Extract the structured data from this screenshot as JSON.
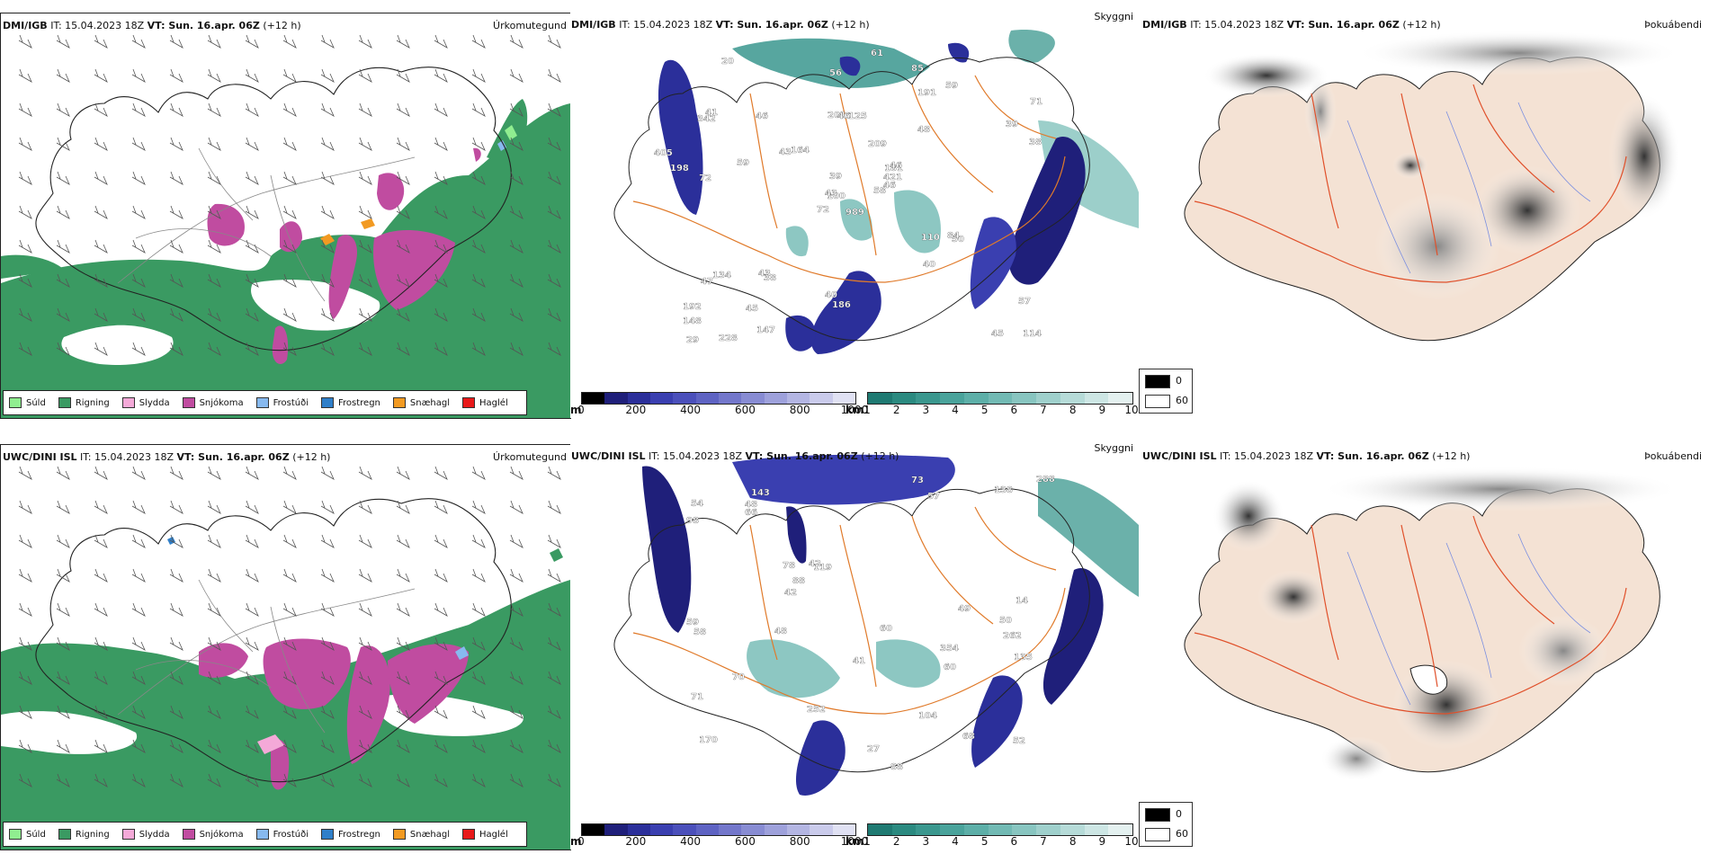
{
  "rows": [
    {
      "model_label": "DMI/IGB",
      "it_label": "IT: 15.04.2023 18Z",
      "vt_label": "VT: Sun. 16.apr. 06Z",
      "lead_label": "(+12 h)",
      "precip_numbers": [
        "989",
        "342",
        "100",
        "192",
        "181",
        "38",
        "85",
        "125",
        "191",
        "58",
        "20",
        "114",
        "72",
        "71",
        "72",
        "48",
        "228",
        "201",
        "209",
        "134",
        "164",
        "148",
        "45",
        "46",
        "46",
        "50",
        "41",
        "56",
        "198",
        "110",
        "38",
        "43",
        "40",
        "39",
        "46",
        "59",
        "43",
        "45",
        "57",
        "84",
        "61",
        "43",
        "59",
        "40",
        "147",
        "405",
        "421",
        "29",
        "186",
        "46",
        "47",
        "39"
      ]
    },
    {
      "model_label": "UWC/DINI ISL",
      "it_label": "IT: 15.04.2023 18Z",
      "vt_label": "VT: Sun. 16.apr. 06Z",
      "lead_label": "(+12 h)",
      "precip_numbers": [
        "354",
        "262",
        "170",
        "143",
        "119",
        "68",
        "71",
        "57",
        "78",
        "88",
        "98",
        "59",
        "54",
        "52",
        "252",
        "14",
        "41",
        "60",
        "42",
        "70",
        "288",
        "138",
        "42",
        "135",
        "73",
        "48",
        "60",
        "58",
        "66",
        "49",
        "27",
        "104",
        "88",
        "48",
        "50"
      ]
    }
  ],
  "panel_titles": {
    "precip_type": "Úrkomutegund",
    "cloud_height": "Skyggni",
    "fog": "Þokuábendi"
  },
  "precip_legend": [
    {
      "label": "Súld",
      "color": "#90ee90"
    },
    {
      "label": "Rigning",
      "color": "#3a9a62"
    },
    {
      "label": "Slydda",
      "color": "#f4a9d8"
    },
    {
      "label": "Snjókoma",
      "color": "#c04ca0"
    },
    {
      "label": "Frostúði",
      "color": "#87b9ef"
    },
    {
      "label": "Frostregn",
      "color": "#2f7fc9"
    },
    {
      "label": "Snæhagl",
      "color": "#f29a22"
    },
    {
      "label": "Haglél",
      "color": "#e8191a"
    }
  ],
  "colorbar_m": {
    "unit": "m",
    "ticks": [
      "0",
      "200",
      "400",
      "600",
      "800",
      "1000"
    ],
    "colors": [
      "#000000",
      "#1f1f7a",
      "#2b2f9a",
      "#3a3fb0",
      "#4b50bb",
      "#5e63c3",
      "#7377cb",
      "#888cd3",
      "#9ea1db",
      "#b4b6e3",
      "#cacbeb",
      "#e0e1f3"
    ]
  },
  "colorbar_km": {
    "unit": "km",
    "ticks": [
      "1",
      "2",
      "3",
      "4",
      "5",
      "6",
      "7",
      "8",
      "9",
      "10"
    ],
    "colors": [
      "#1f7a72",
      "#2b8a80",
      "#3a978e",
      "#4aa39b",
      "#5dafa8",
      "#72bab4",
      "#88c5c0",
      "#9fd0cc",
      "#b6dbd8",
      "#cde6e4",
      "#e4f1f0"
    ]
  },
  "fog_legend": [
    {
      "label": "0",
      "color": "#000000"
    },
    {
      "label": "60",
      "color": "#ffffff"
    }
  ]
}
